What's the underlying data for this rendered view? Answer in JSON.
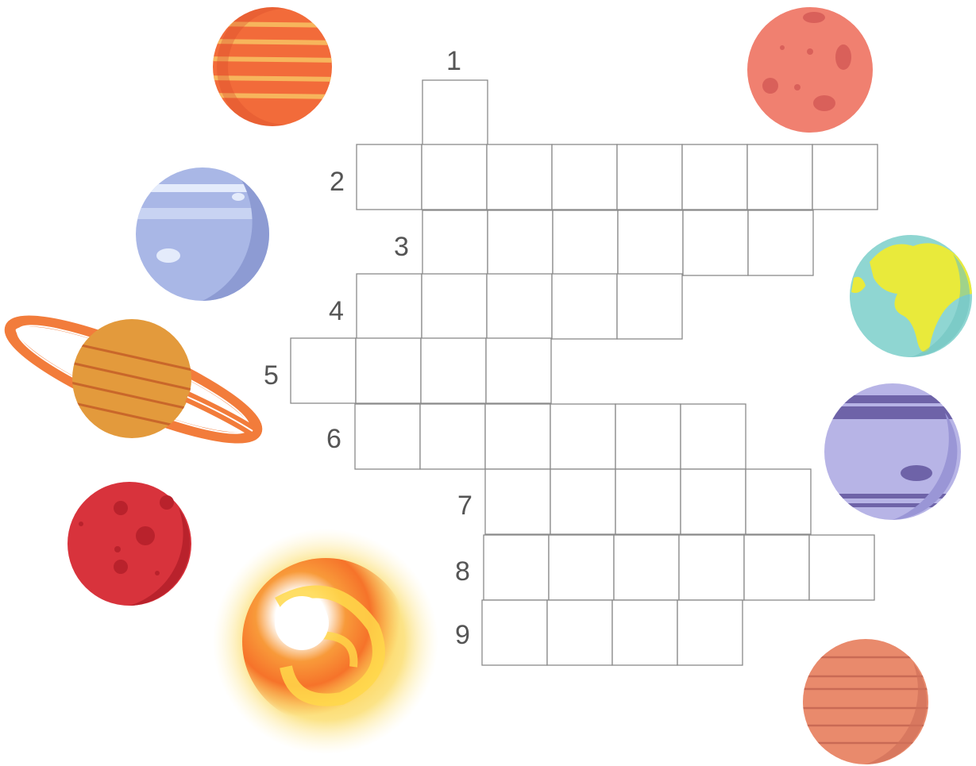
{
  "crossword": {
    "clues": [
      {
        "number": "1",
        "direction": "down",
        "length": 2
      },
      {
        "number": "2",
        "direction": "across",
        "length": 8
      },
      {
        "number": "3",
        "direction": "across",
        "length": 6
      },
      {
        "number": "4",
        "direction": "across",
        "length": 5
      },
      {
        "number": "5",
        "direction": "across",
        "length": 4
      },
      {
        "number": "6",
        "direction": "across",
        "length": 6
      },
      {
        "number": "7",
        "direction": "across",
        "length": 5
      },
      {
        "number": "8",
        "direction": "across",
        "length": 6
      },
      {
        "number": "9",
        "direction": "across",
        "length": 4
      }
    ]
  },
  "decorations": {
    "planets": [
      {
        "name": "jupiter-icon",
        "color": "#f26b3a"
      },
      {
        "name": "mercury-icon",
        "color": "#f08070"
      },
      {
        "name": "neptune-icon",
        "color": "#a9b7e6"
      },
      {
        "name": "earth-icon",
        "color": "#8fd6d2"
      },
      {
        "name": "saturn-icon",
        "color": "#e39a3c"
      },
      {
        "name": "uranus-icon",
        "color": "#b7b4e6"
      },
      {
        "name": "mars-icon",
        "color": "#d8333c"
      },
      {
        "name": "sun-icon",
        "color": "#f7a33a"
      },
      {
        "name": "venus-icon",
        "color": "#e98a6c"
      }
    ]
  }
}
